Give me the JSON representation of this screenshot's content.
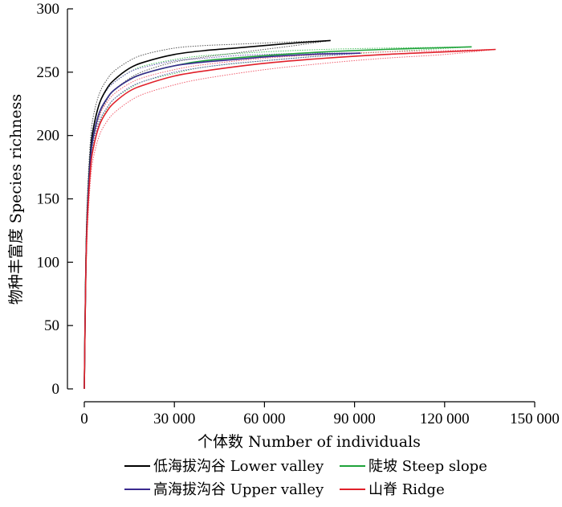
{
  "chart_data": {
    "type": "line",
    "title": "",
    "xlabel": "个体数 Number of individuals",
    "ylabel": "物种丰富度 Species richness",
    "xlim": [
      0,
      150000
    ],
    "ylim": [
      0,
      300
    ],
    "x_ticks": [
      0,
      30000,
      60000,
      90000,
      120000,
      150000
    ],
    "x_tick_labels": [
      "0",
      "30 000",
      "60 000",
      "90 000",
      "120 000",
      "150 000"
    ],
    "y_ticks": [
      0,
      50,
      100,
      150,
      200,
      250,
      300
    ],
    "y_tick_labels": [
      "0",
      "50",
      "100",
      "150",
      "200",
      "250",
      "300"
    ],
    "grid": false,
    "legend_position": "bottom",
    "series": [
      {
        "name": "低海拔沟谷 Lower valley",
        "color": "#000000",
        "x": [
          0,
          500,
          1000,
          2000,
          3000,
          5000,
          7500,
          10000,
          15000,
          20000,
          30000,
          40000,
          50000,
          60000,
          70000,
          82000
        ],
        "values": [
          0,
          95,
          140,
          185,
          205,
          225,
          237,
          244,
          253,
          258,
          264,
          267,
          269,
          271,
          273,
          275
        ],
        "ci_color": "#555555",
        "ci_upper": [
          0,
          105,
          150,
          195,
          215,
          233,
          244,
          251,
          259,
          264,
          269,
          271,
          272,
          273,
          274,
          275
        ],
        "ci_lower": [
          0,
          85,
          130,
          176,
          195,
          215,
          228,
          236,
          245,
          251,
          258,
          262,
          265,
          268,
          271,
          275
        ]
      },
      {
        "name": "陡坡 Steep slope",
        "color": "#1fa33a",
        "x": [
          0,
          500,
          1000,
          2000,
          3000,
          5000,
          7500,
          10000,
          15000,
          20000,
          30000,
          40000,
          60000,
          80000,
          100000,
          129000
        ],
        "values": [
          0,
          95,
          138,
          180,
          199,
          218,
          229,
          236,
          244,
          249,
          255,
          259,
          263,
          266,
          268,
          270
        ],
        "ci_color": "#4cc061",
        "ci_upper": [
          0,
          104,
          147,
          189,
          207,
          225,
          236,
          242,
          250,
          255,
          260,
          263,
          266,
          268,
          269,
          270
        ],
        "ci_lower": [
          0,
          86,
          129,
          171,
          190,
          210,
          221,
          229,
          237,
          243,
          249,
          254,
          259,
          263,
          266,
          270
        ]
      },
      {
        "name": "高海拔沟谷 Upper valley",
        "color": "#3a2a8f",
        "x": [
          0,
          500,
          1000,
          2000,
          3000,
          5000,
          7500,
          10000,
          15000,
          20000,
          30000,
          40000,
          50000,
          60000,
          75000,
          92000
        ],
        "values": [
          0,
          93,
          137,
          180,
          199,
          218,
          229,
          236,
          244,
          249,
          255,
          258,
          260,
          262,
          264,
          265
        ],
        "ci_color": "#6a5ab8",
        "ci_upper": [
          0,
          102,
          146,
          189,
          207,
          225,
          236,
          242,
          250,
          254,
          259,
          261,
          263,
          264,
          265,
          265
        ],
        "ci_lower": [
          0,
          84,
          128,
          171,
          191,
          211,
          222,
          229,
          238,
          243,
          250,
          254,
          257,
          259,
          262,
          265
        ]
      },
      {
        "name": "山脊 Ridge",
        "color": "#e0202a",
        "x": [
          0,
          500,
          1000,
          2000,
          3000,
          5000,
          7500,
          10000,
          15000,
          20000,
          30000,
          40000,
          60000,
          80000,
          100000,
          120000,
          137000
        ],
        "values": [
          0,
          90,
          132,
          172,
          190,
          208,
          219,
          226,
          235,
          240,
          247,
          251,
          257,
          261,
          264,
          266,
          268
        ],
        "ci_color": "#f06070",
        "ci_upper": [
          0,
          99,
          141,
          181,
          198,
          216,
          226,
          233,
          241,
          246,
          252,
          256,
          261,
          264,
          266,
          267,
          268
        ],
        "ci_lower": [
          0,
          81,
          123,
          163,
          182,
          200,
          211,
          218,
          227,
          233,
          240,
          245,
          252,
          257,
          261,
          264,
          268
        ]
      }
    ]
  }
}
